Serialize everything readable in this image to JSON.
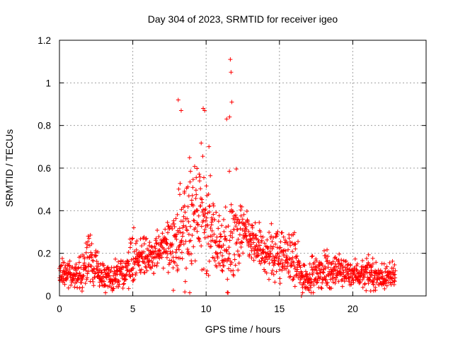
{
  "chart_data": {
    "type": "scatter",
    "title": "Day 304 of 2023, SRMTID for receiver igeo",
    "xlabel": "GPS time / hours",
    "ylabel": "SRMTID / TECUs",
    "xlim": [
      0,
      25
    ],
    "ylim": [
      0,
      1.2
    ],
    "x_ticks": [
      0,
      5,
      10,
      15,
      20
    ],
    "x_tick_labels": [
      "0",
      "5",
      "10",
      "15",
      "20"
    ],
    "y_ticks": [
      0,
      0.2,
      0.4,
      0.6,
      0.8,
      1.0,
      1.2
    ],
    "y_tick_labels": [
      "0",
      "0.2",
      "0.4",
      "0.6",
      "0.8",
      "1",
      "1.2"
    ],
    "grid": true,
    "marker": "+",
    "marker_color": "#ff0000",
    "x_range_of_data": [
      0,
      22.9
    ],
    "notable_points": {
      "x": [
        8.1,
        8.3,
        9.8,
        9.9,
        11.4,
        11.6,
        11.65,
        11.7,
        11.75,
        16.5
      ],
      "y": [
        0.92,
        0.87,
        0.88,
        0.87,
        0.83,
        0.84,
        1.11,
        1.05,
        0.91,
        0.0
      ]
    },
    "profile": {
      "x": [
        0,
        0.5,
        1,
        1.5,
        2,
        2.5,
        3,
        3.5,
        4,
        4.5,
        5,
        5.5,
        6,
        6.5,
        7,
        7.5,
        8,
        8.5,
        9,
        9.5,
        10,
        10.5,
        11,
        11.5,
        12,
        12.5,
        13,
        13.5,
        14,
        14.5,
        15,
        15.5,
        16,
        16.5,
        17,
        17.5,
        18,
        18.5,
        19,
        19.5,
        20,
        20.5,
        21,
        21.5,
        22,
        22.9
      ],
      "median": [
        0.11,
        0.1,
        0.1,
        0.11,
        0.18,
        0.12,
        0.08,
        0.08,
        0.09,
        0.12,
        0.17,
        0.16,
        0.18,
        0.2,
        0.22,
        0.24,
        0.26,
        0.3,
        0.35,
        0.38,
        0.36,
        0.3,
        0.2,
        0.18,
        0.28,
        0.3,
        0.26,
        0.22,
        0.2,
        0.2,
        0.19,
        0.18,
        0.17,
        0.09,
        0.09,
        0.1,
        0.12,
        0.11,
        0.12,
        0.11,
        0.11,
        0.1,
        0.1,
        0.09,
        0.09,
        0.09
      ],
      "spread": [
        0.04,
        0.04,
        0.04,
        0.05,
        0.07,
        0.05,
        0.04,
        0.04,
        0.04,
        0.06,
        0.08,
        0.06,
        0.07,
        0.06,
        0.06,
        0.08,
        0.14,
        0.18,
        0.18,
        0.15,
        0.16,
        0.12,
        0.08,
        0.15,
        0.12,
        0.08,
        0.07,
        0.06,
        0.07,
        0.08,
        0.08,
        0.06,
        0.09,
        0.05,
        0.05,
        0.05,
        0.05,
        0.05,
        0.05,
        0.04,
        0.04,
        0.04,
        0.04,
        0.04,
        0.04,
        0.04
      ]
    }
  }
}
